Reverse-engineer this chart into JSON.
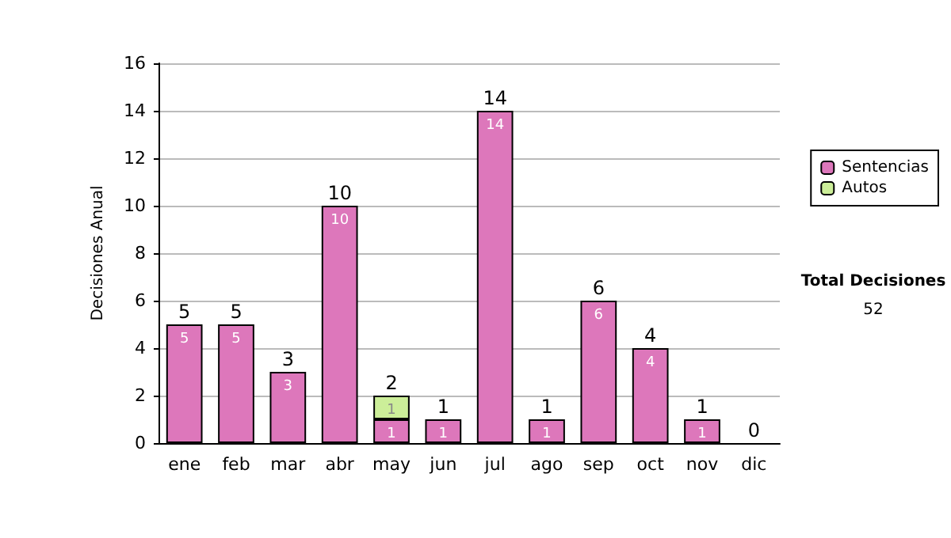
{
  "chart_data": {
    "type": "bar",
    "ylabel": "Decisiones Anual",
    "categories": [
      "ene",
      "feb",
      "mar",
      "abr",
      "may",
      "jun",
      "jul",
      "ago",
      "sep",
      "oct",
      "nov",
      "dic"
    ],
    "series": [
      {
        "name": "Sentencias",
        "color": "#dd77bb",
        "values": [
          5,
          5,
          3,
          10,
          1,
          1,
          14,
          1,
          6,
          4,
          1,
          0
        ],
        "value_labels": [
          "5",
          "5",
          "3",
          "10",
          "1",
          "1",
          "14",
          "1",
          "6",
          "4",
          "1",
          null
        ]
      },
      {
        "name": "Autos",
        "color": "#ccee99",
        "values": [
          0,
          0,
          0,
          0,
          1,
          0,
          0,
          0,
          0,
          0,
          0,
          0
        ],
        "value_labels": [
          null,
          null,
          null,
          null,
          "1",
          null,
          null,
          null,
          null,
          null,
          null,
          null
        ]
      }
    ],
    "stacked": true,
    "totals": [
      "5",
      "5",
      "3",
      "10",
      "2",
      "1",
      "14",
      "1",
      "6",
      "4",
      "1",
      "0"
    ],
    "ylim": [
      0,
      16
    ],
    "yticks": [
      0,
      2,
      4,
      6,
      8,
      10,
      12,
      14,
      16
    ],
    "grid": "y",
    "legend": "right",
    "annotations": [
      "Total Decisiones",
      "52"
    ]
  }
}
